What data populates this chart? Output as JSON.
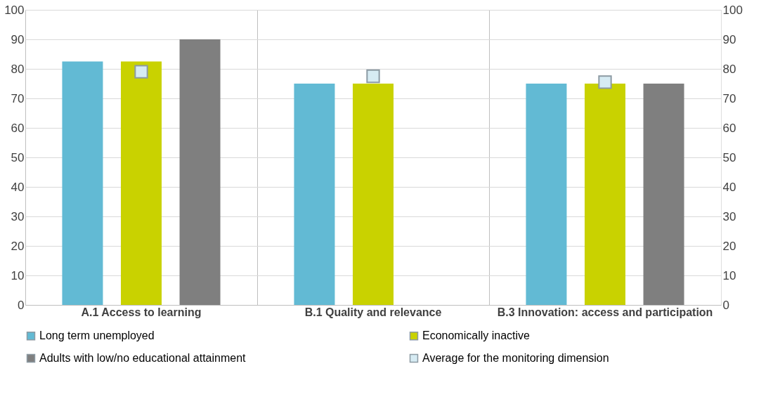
{
  "chart_data": {
    "type": "bar",
    "categories": [
      "A.1 Access to learning",
      "B.1 Quality and relevance",
      "B.3 Innovation: access and participation"
    ],
    "series": [
      {
        "name": "Long term unemployed",
        "color": "#62bad4",
        "values": [
          82.5,
          75,
          75
        ]
      },
      {
        "name": "Economically inactive",
        "color": "#c9d200",
        "values": [
          82.5,
          75,
          75
        ]
      },
      {
        "name": "Adults with low/no educational attainment",
        "color": "#7f7f7f",
        "values": [
          90,
          null,
          75
        ]
      },
      {
        "name": "Average for the monitoring dimension",
        "type": "scatter",
        "color": "#d6ebf3",
        "values": [
          79,
          77.5,
          75.5
        ]
      }
    ],
    "ylim": [
      0,
      100
    ],
    "yticks": [
      0,
      10,
      20,
      30,
      40,
      50,
      60,
      70,
      80,
      90,
      100
    ],
    "y2lim": [
      0,
      100
    ],
    "y2ticks": [
      0,
      10,
      20,
      30,
      40,
      50,
      60,
      70,
      80,
      90,
      100
    ],
    "grid": true,
    "legend": "bottom",
    "marker": "square"
  }
}
